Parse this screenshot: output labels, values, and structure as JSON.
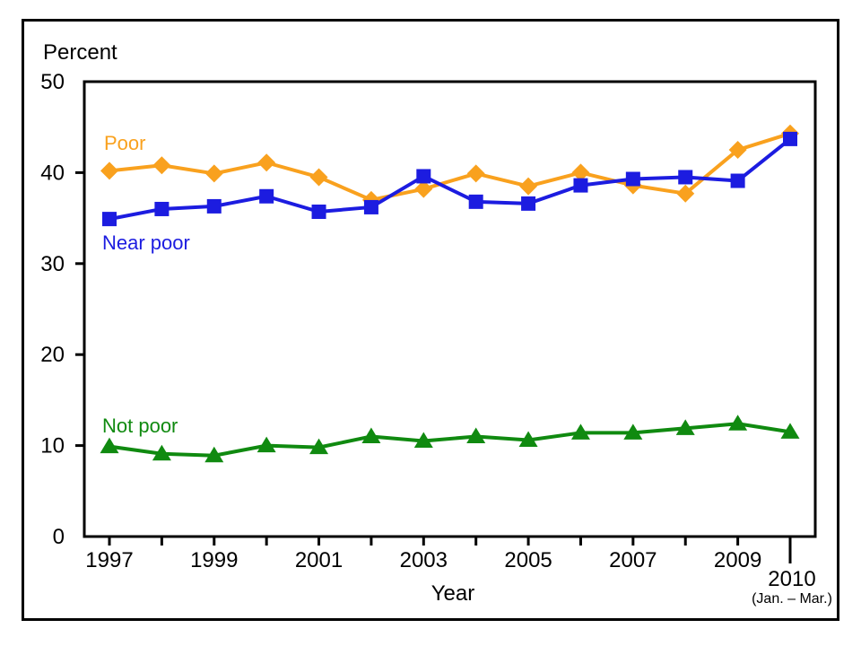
{
  "chart_data": {
    "type": "line",
    "title": "",
    "xlabel": "Year",
    "ylabel": "Percent",
    "x": [
      1997,
      1998,
      1999,
      2000,
      2001,
      2002,
      2003,
      2004,
      2005,
      2006,
      2007,
      2008,
      2009,
      2010
    ],
    "x_tick_labels": [
      "1997",
      "1999",
      "2001",
      "2003",
      "2005",
      "2007",
      "2009"
    ],
    "x_final_tick": {
      "label": "2010",
      "sublabel": "(Jan. – Mar.)"
    },
    "ylim": [
      0,
      50
    ],
    "y_ticks": [
      0,
      10,
      20,
      30,
      40,
      50
    ],
    "grid": false,
    "legend_position": "inline-labels-near-lines",
    "frame": true,
    "series": [
      {
        "name": "Poor",
        "color": "#F9A11E",
        "marker": "diamond",
        "values": [
          40.2,
          40.8,
          39.9,
          41.1,
          39.5,
          37.0,
          38.2,
          39.9,
          38.5,
          40.0,
          38.6,
          37.7,
          42.5,
          44.3
        ]
      },
      {
        "name": "Near poor",
        "color": "#1C1CE0",
        "marker": "square",
        "values": [
          34.9,
          36.0,
          36.3,
          37.4,
          35.7,
          36.2,
          39.6,
          36.8,
          36.6,
          38.6,
          39.3,
          39.5,
          39.1,
          43.7
        ]
      },
      {
        "name": "Not poor",
        "color": "#108A10",
        "marker": "triangle",
        "values": [
          9.9,
          9.1,
          8.9,
          10.0,
          9.8,
          11.0,
          10.5,
          11.0,
          10.6,
          11.4,
          11.4,
          11.9,
          12.4,
          11.5
        ]
      }
    ]
  }
}
